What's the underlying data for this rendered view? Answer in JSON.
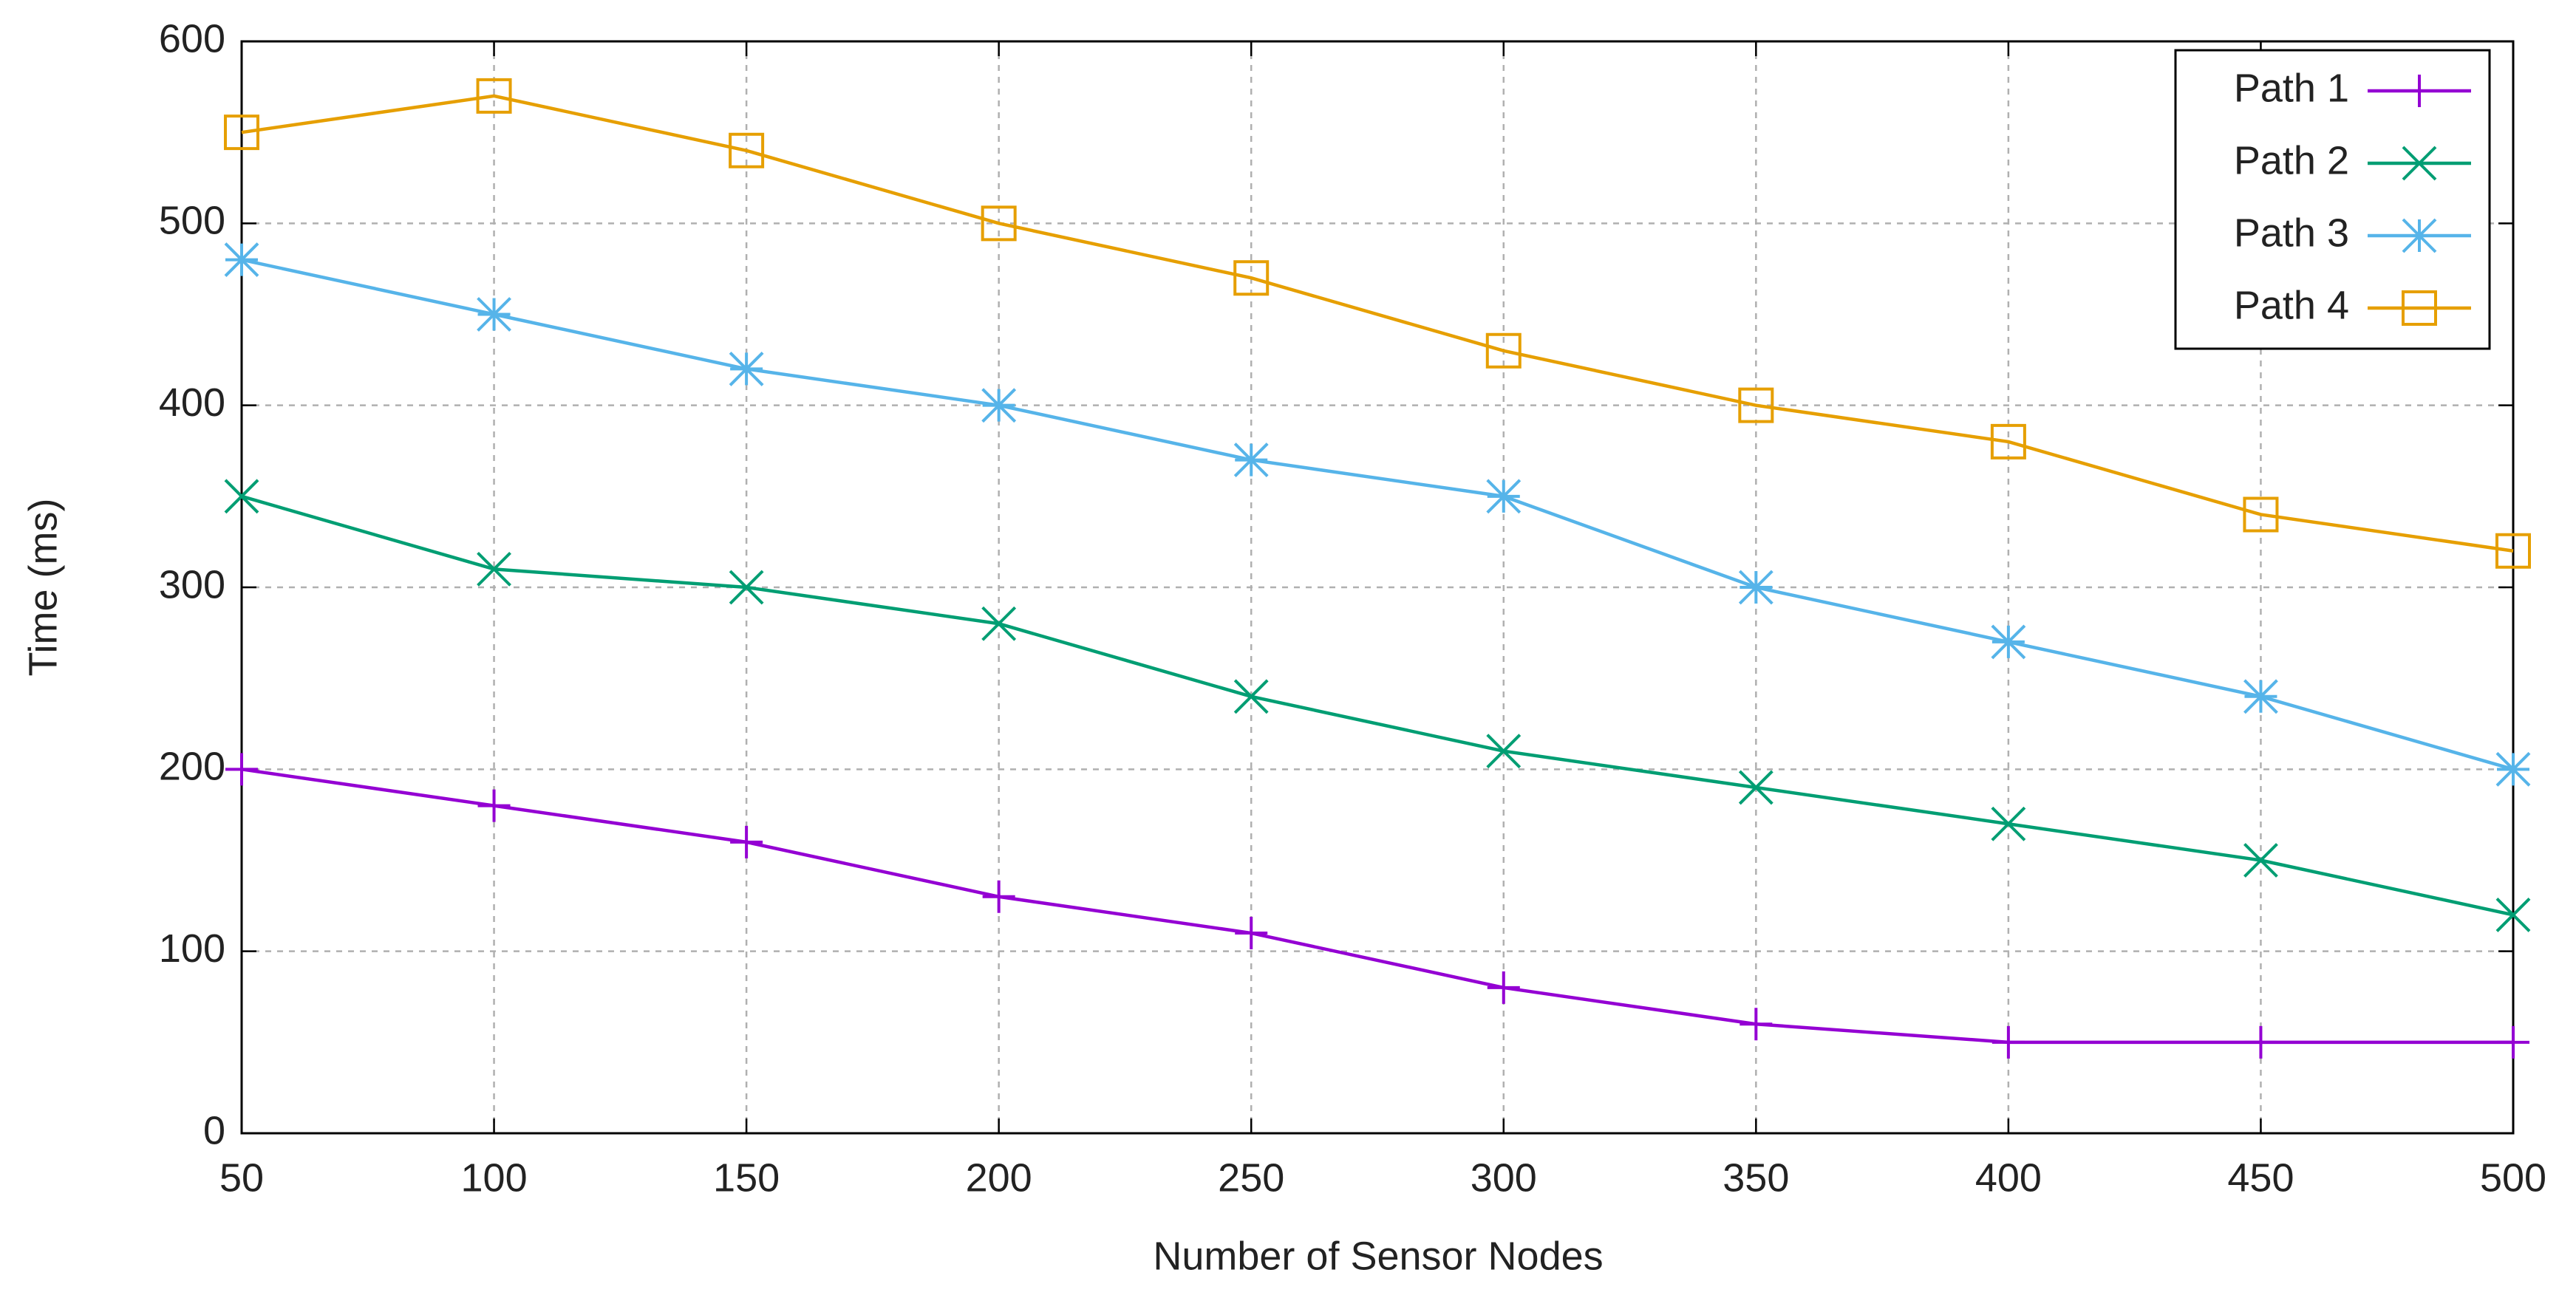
{
  "chart_data": {
    "type": "line",
    "x_label": "Number of Sensor Nodes",
    "y_label": "Time (ms)",
    "x": [
      50,
      100,
      150,
      200,
      250,
      300,
      350,
      400,
      450,
      500
    ],
    "series": [
      {
        "name": "Path 1",
        "color": "#9400d3",
        "marker": "plus",
        "values": [
          200,
          180,
          160,
          130,
          110,
          80,
          60,
          50,
          50,
          50
        ]
      },
      {
        "name": "Path 2",
        "color": "#009e73",
        "marker": "x",
        "values": [
          350,
          310,
          300,
          280,
          240,
          210,
          190,
          170,
          150,
          120
        ]
      },
      {
        "name": "Path 3",
        "color": "#56b4e9",
        "marker": "star",
        "values": [
          480,
          450,
          420,
          400,
          370,
          350,
          300,
          270,
          240,
          200
        ]
      },
      {
        "name": "Path 4",
        "color": "#e69f00",
        "marker": "square",
        "values": [
          550,
          570,
          540,
          500,
          470,
          430,
          400,
          380,
          340,
          320
        ]
      }
    ],
    "xlim": [
      50,
      500
    ],
    "xticks": [
      50,
      100,
      150,
      200,
      250,
      300,
      350,
      400,
      450,
      500
    ],
    "ylim": [
      0,
      600
    ],
    "yticks": [
      0,
      100,
      200,
      300,
      400,
      500,
      600
    ],
    "grid": true,
    "legend": "top-right"
  }
}
